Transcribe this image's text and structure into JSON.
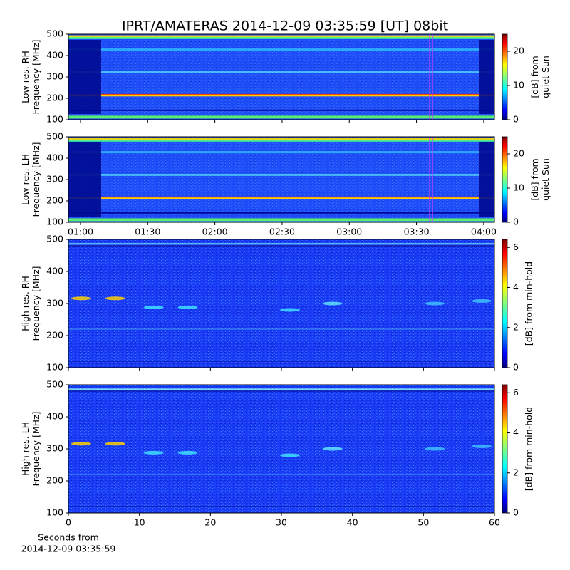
{
  "chart_data": [
    {
      "type": "heatmap",
      "title": "IPRT/AMATERAS 2014-12-09 03:35:59 [UT]   08bit",
      "ylabel": [
        "Low res. RH",
        "Frequency [MHz]"
      ],
      "colorbar_label": [
        "[dB] from",
        "quiet Sun"
      ],
      "ylim": [
        100,
        500
      ],
      "yticks": [
        100,
        200,
        300,
        400,
        500
      ],
      "xlim": [
        54.6,
        244.8
      ],
      "xticks": [
        60,
        90,
        120,
        150,
        180,
        210,
        240
      ],
      "marker_x": [
        215.9,
        217.1
      ],
      "marker_color": "#c040ff",
      "clim": [
        0,
        25
      ],
      "cticks": [
        0,
        10,
        20
      ]
    },
    {
      "type": "heatmap",
      "ylabel": [
        "Low res. LH",
        "Frequency [MHz]"
      ],
      "colorbar_label": [
        "[dB] from",
        "quiet Sun"
      ],
      "ylim": [
        100,
        500
      ],
      "yticks": [
        100,
        200,
        300,
        400,
        500
      ],
      "xlim": [
        54.6,
        244.8
      ],
      "xticks": [
        {
          "value": 60,
          "label": "01:00"
        },
        {
          "value": 90,
          "label": "01:30"
        },
        {
          "value": 120,
          "label": "02:00"
        },
        {
          "value": 150,
          "label": "02:30"
        },
        {
          "value": 180,
          "label": "03:00"
        },
        {
          "value": 210,
          "label": "03:30"
        },
        {
          "value": 240,
          "label": "04:00"
        }
      ],
      "marker_x": [
        215.9,
        217.1
      ],
      "marker_color": "#c040ff",
      "clim": [
        0,
        25
      ],
      "cticks": [
        0,
        10,
        20
      ]
    },
    {
      "type": "heatmap",
      "ylabel": [
        "High res. RH",
        "Frequency [MHz]"
      ],
      "colorbar_label": [
        "[dB] from min-hold"
      ],
      "ylim": [
        100,
        500
      ],
      "yticks": [
        100,
        200,
        300,
        400,
        500
      ],
      "xlim": [
        0,
        60
      ],
      "xticks": [
        0,
        10,
        20,
        30,
        40,
        50,
        60
      ],
      "hide_xticklabels": true,
      "clim": [
        0,
        6.4
      ],
      "cticks": [
        0,
        2,
        4,
        6
      ]
    },
    {
      "type": "heatmap",
      "ylabel": [
        "High res. LH",
        "Frequency [MHz]"
      ],
      "colorbar_label": [
        "[dB] from min-hold"
      ],
      "ylim": [
        100,
        500
      ],
      "yticks": [
        100,
        200,
        300,
        400,
        500
      ],
      "xlim": [
        0,
        60
      ],
      "xticks": [
        0,
        10,
        20,
        30,
        40,
        50,
        60
      ],
      "xlabel": [
        "Seconds from",
        "2014-12-09 03:35:59"
      ],
      "clim": [
        0,
        6.4
      ],
      "cticks": [
        0,
        2,
        4,
        6
      ]
    }
  ]
}
